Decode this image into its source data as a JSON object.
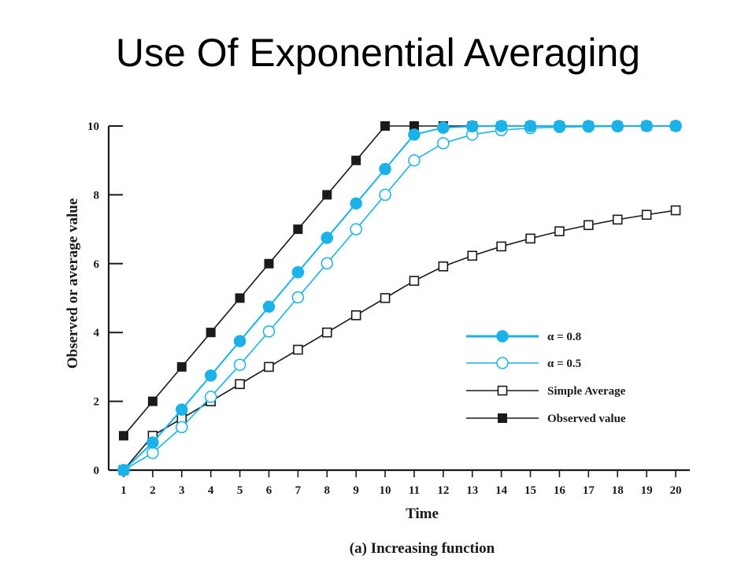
{
  "page": {
    "title": "Use Of Exponential Averaging"
  },
  "colors": {
    "black_series": "#1a1a1a",
    "blue_series": "#1ab2e8",
    "axis": "#1a1a1a"
  },
  "chart_data": {
    "type": "line",
    "title": "",
    "xlabel": "Time",
    "ylabel": "Observed or average value",
    "caption": "(a) Increasing function",
    "xlim": [
      1,
      20
    ],
    "ylim": [
      0,
      10
    ],
    "x_ticks": [
      "1",
      "2",
      "3",
      "4",
      "5",
      "6",
      "7",
      "8",
      "9",
      "10",
      "11",
      "12",
      "13",
      "14",
      "15",
      "16",
      "17",
      "18",
      "19",
      "20"
    ],
    "y_ticks": [
      "0",
      "2",
      "4",
      "6",
      "8",
      "10"
    ],
    "x": [
      1,
      2,
      3,
      4,
      5,
      6,
      7,
      8,
      9,
      10,
      11,
      12,
      13,
      14,
      15,
      16,
      17,
      18,
      19,
      20
    ],
    "legend_position": "lower-right",
    "series": [
      {
        "name": "α = 0.8",
        "marker": "filled-circle",
        "color": "#1ab2e8",
        "values": [
          0,
          0.8,
          1.76,
          2.75,
          3.75,
          4.75,
          5.75,
          6.75,
          7.75,
          8.75,
          9.75,
          9.95,
          9.99,
          10,
          10,
          10,
          10,
          10,
          10,
          10
        ]
      },
      {
        "name": "α = 0.5",
        "marker": "open-circle",
        "color": "#1ab2e8",
        "values": [
          0,
          0.5,
          1.25,
          2.13,
          3.06,
          4.03,
          5.02,
          6.01,
          7.0,
          8.0,
          9.0,
          9.5,
          9.75,
          9.88,
          9.94,
          9.97,
          9.98,
          9.99,
          10,
          10
        ]
      },
      {
        "name": "Simple Average",
        "marker": "open-square",
        "color": "#1a1a1a",
        "values": [
          0,
          1.0,
          1.5,
          2.0,
          2.5,
          3.0,
          3.5,
          4.0,
          4.5,
          5.0,
          5.5,
          5.92,
          6.23,
          6.5,
          6.73,
          6.94,
          7.12,
          7.28,
          7.42,
          7.55
        ]
      },
      {
        "name": "Observed value",
        "marker": "filled-square",
        "color": "#1a1a1a",
        "values": [
          1,
          2,
          3,
          4,
          5,
          6,
          7,
          8,
          9,
          10,
          10,
          10,
          10,
          10,
          10,
          10,
          10,
          10,
          10,
          10
        ]
      }
    ]
  }
}
